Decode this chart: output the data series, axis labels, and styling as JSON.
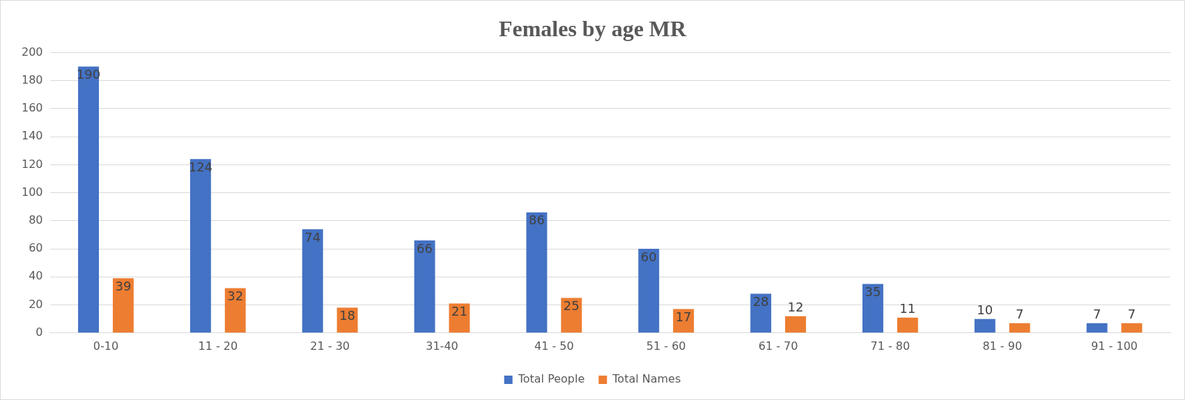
{
  "chart_data": {
    "type": "bar",
    "title": "Females by age MR",
    "categories": [
      "0-10",
      "11 - 20",
      "21 - 30",
      "31-40",
      "41 - 50",
      "51 - 60",
      "61 - 70",
      "71 - 80",
      "81 - 90",
      "91 - 100"
    ],
    "series": [
      {
        "name": "Total People",
        "color": "#4472c4",
        "values": [
          190,
          124,
          74,
          66,
          86,
          60,
          28,
          35,
          10,
          7
        ]
      },
      {
        "name": "Total Names",
        "color": "#ed7d31",
        "values": [
          39,
          32,
          18,
          21,
          25,
          17,
          12,
          11,
          7,
          7
        ]
      }
    ],
    "ylim": [
      0,
      200
    ],
    "yticks": [
      0,
      20,
      40,
      60,
      80,
      100,
      120,
      140,
      160,
      180,
      200
    ],
    "grid": "y",
    "legend": "bottom",
    "data_labels": true
  }
}
